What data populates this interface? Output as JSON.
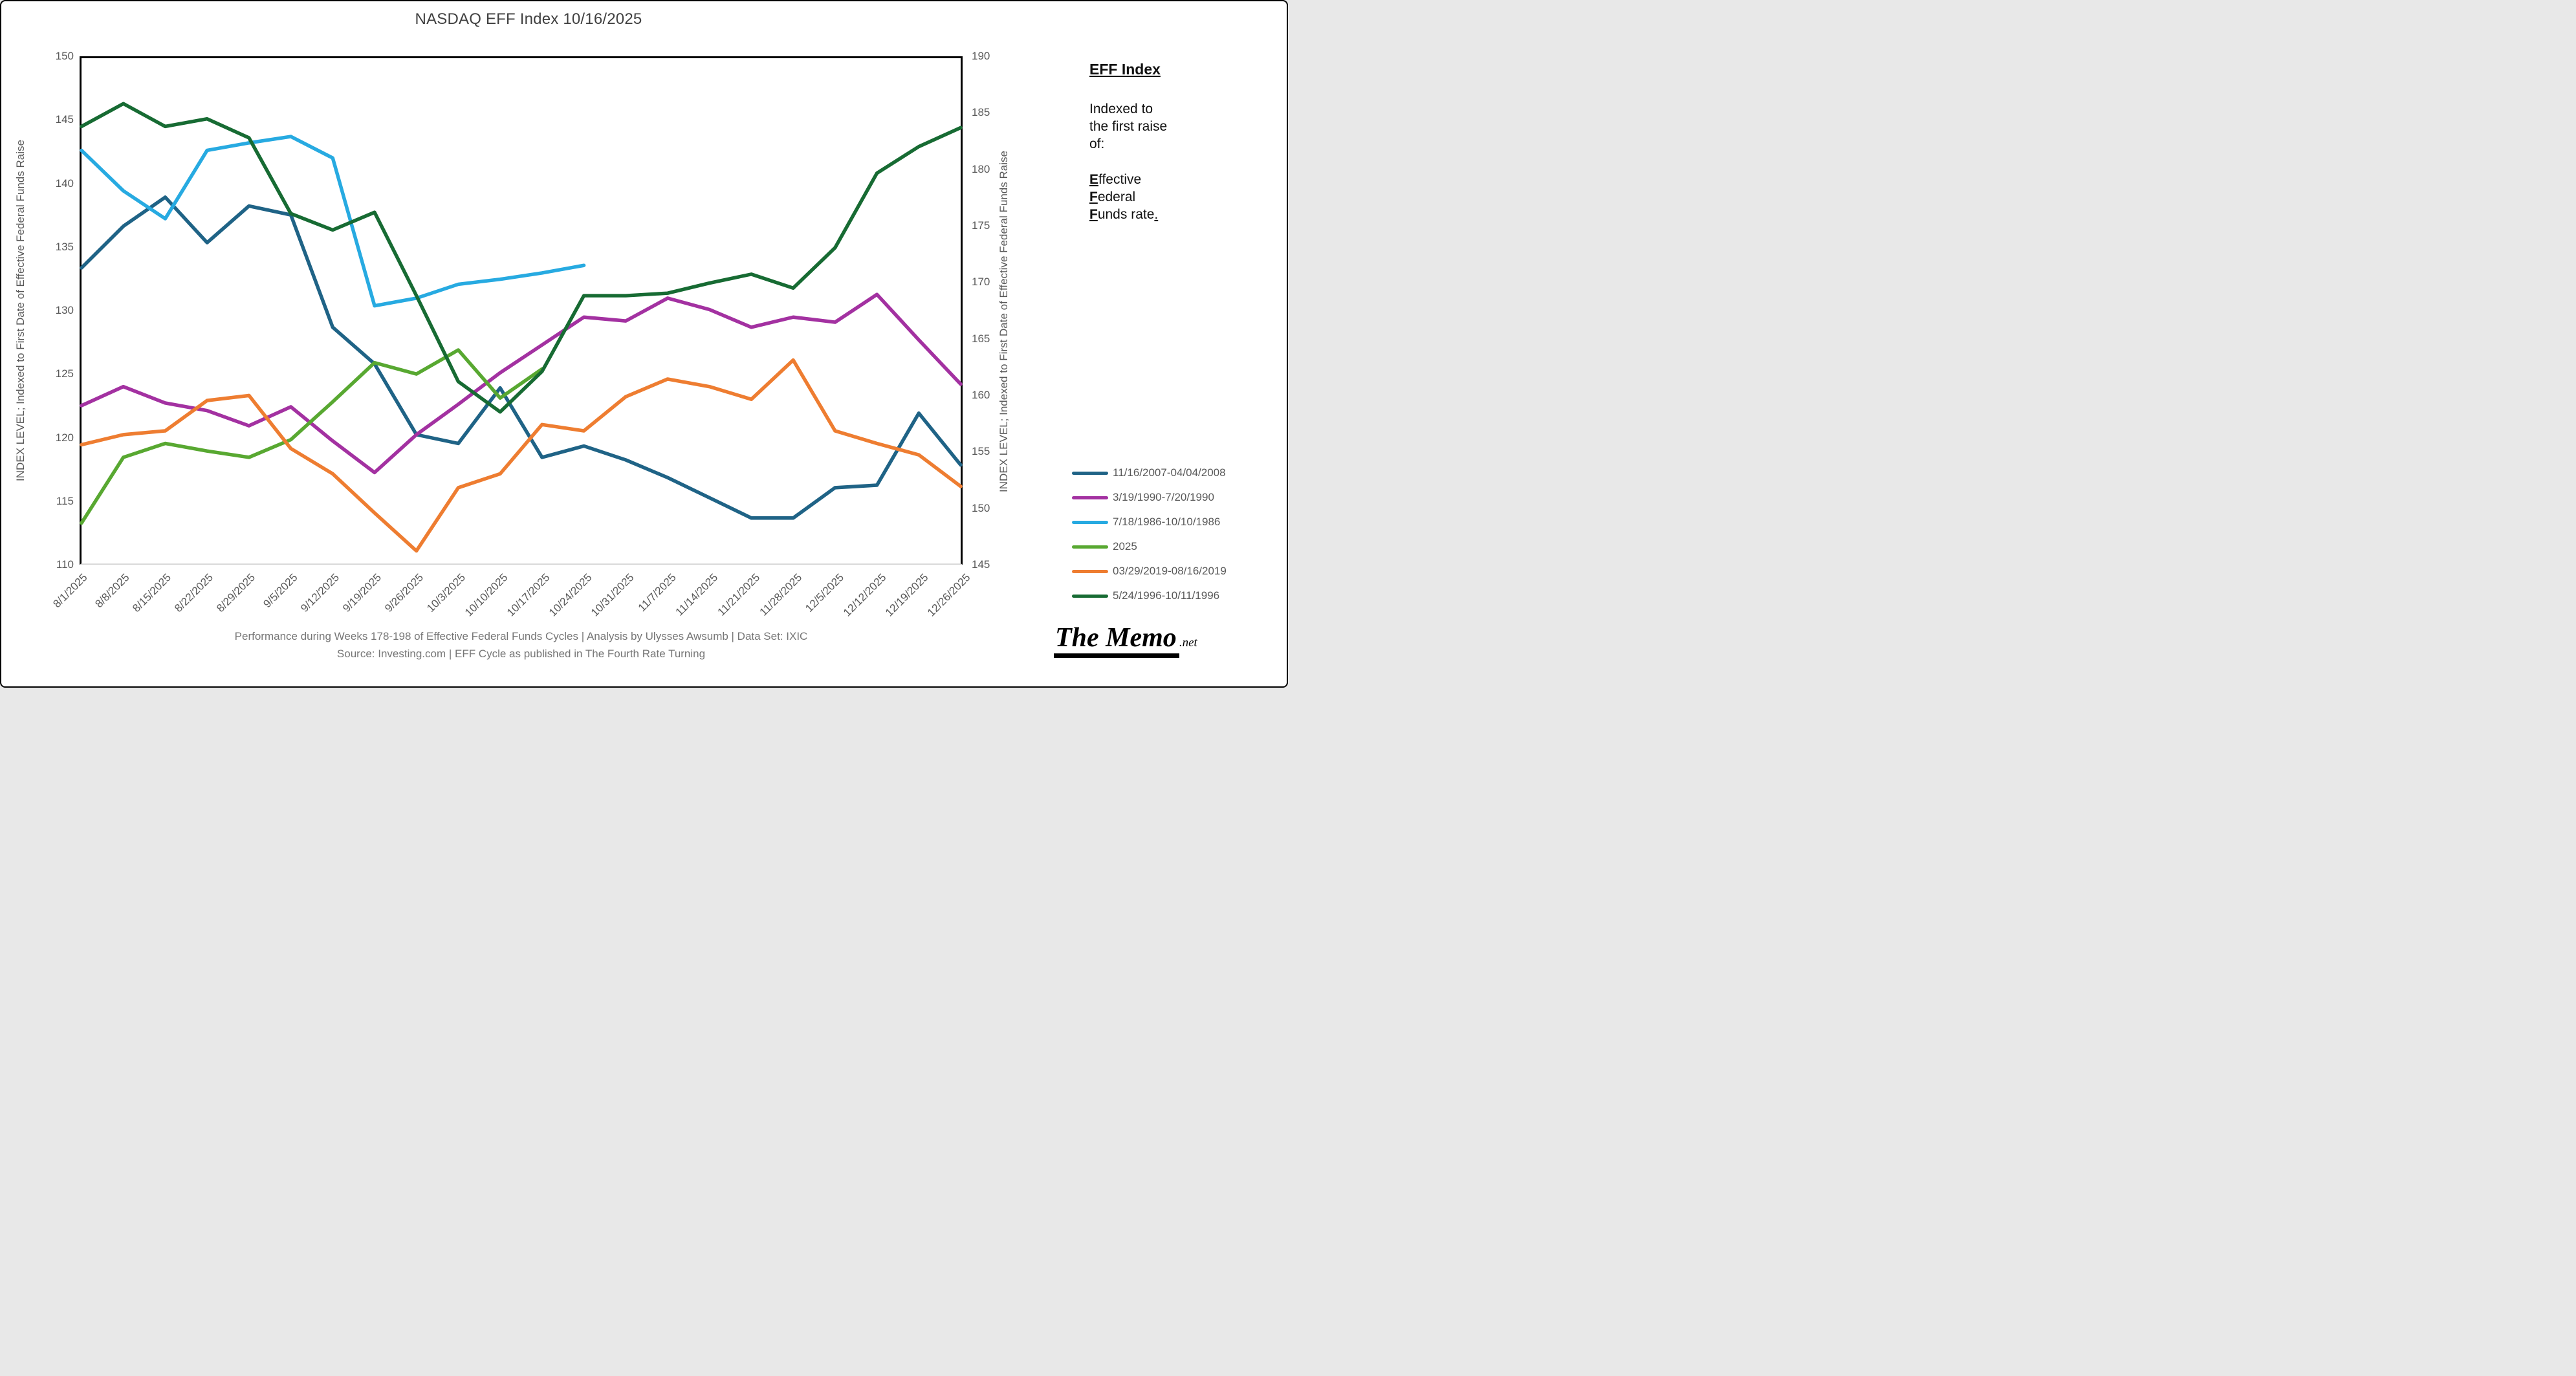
{
  "title": "NASDAQ EFF Index 10/16/2025",
  "caption": {
    "line1": "Performance during Weeks 178-198 of Effective Federal Funds Cycles  |  Analysis  by Ulysses Awsumb  |  Data Set: IXIC",
    "line2": "Source: Investing.com  |  EFF Cycle as published in The Fourth Rate Turning"
  },
  "side_note": {
    "heading": "EFF Index",
    "body": [
      "Indexed to",
      "the first raise",
      "of:"
    ],
    "eff_words": [
      {
        "lead": "E",
        "rest": "ffective",
        "tail": ""
      },
      {
        "lead": "F",
        "rest": "ederal",
        "tail": ""
      },
      {
        "lead": "F",
        "rest": "unds rate",
        "tail": "."
      }
    ]
  },
  "branding": {
    "name": "The Memo",
    "suffix": ".net"
  },
  "chart_data": {
    "type": "line",
    "title": "NASDAQ EFF Index 10/16/2025",
    "grid": false,
    "legend_position": "right",
    "categories": [
      "8/1/2025",
      "8/8/2025",
      "8/15/2025",
      "8/22/2025",
      "8/29/2025",
      "9/5/2025",
      "9/12/2025",
      "9/19/2025",
      "9/26/2025",
      "10/3/2025",
      "10/10/2025",
      "10/17/2025",
      "10/24/2025",
      "10/31/2025",
      "11/7/2025",
      "11/14/2025",
      "11/21/2025",
      "11/28/2025",
      "12/5/2025",
      "12/12/2025",
      "12/19/2025",
      "12/26/2025"
    ],
    "left_axis": {
      "label": "INDEX LEVEL; Indexed to First Date of Effective Federal Funds Raise",
      "min": 110,
      "max": 150,
      "step": 5
    },
    "right_axis": {
      "label": "INDEX LEVEL; Indexed to First Date of Effective Federal Funds Raise",
      "min": 145,
      "max": 190,
      "step": 5
    },
    "series": [
      {
        "name": "11/16/2007-04/04/2008",
        "color": "#1F6386",
        "values": [
          133.4,
          136.7,
          139.0,
          135.4,
          138.3,
          137.6,
          128.7,
          125.8,
          120.2,
          119.5,
          123.9,
          118.4,
          119.3,
          118.2,
          116.8,
          115.2,
          113.6,
          113.6,
          116.0,
          116.2,
          121.9,
          117.8
        ]
      },
      {
        "name": "3/19/1990-7/20/1990",
        "color": "#A331A1",
        "values": [
          122.5,
          124.0,
          122.7,
          122.1,
          120.9,
          122.4,
          119.7,
          117.2,
          120.2,
          122.6,
          125.1,
          127.3,
          129.5,
          129.2,
          131.0,
          130.1,
          128.7,
          129.5,
          129.1,
          131.3,
          127.7,
          124.2
        ]
      },
      {
        "name": "7/18/1986-10/10/1986",
        "color": "#27AAE1",
        "values": [
          142.7,
          139.5,
          137.3,
          142.7,
          143.3,
          143.8,
          142.1,
          130.4,
          131.0,
          132.1,
          132.5,
          133.0,
          133.6
        ]
      },
      {
        "name": "2025",
        "color": "#58A831",
        "values": [
          113.2,
          118.4,
          119.5,
          118.9,
          118.4,
          119.8,
          122.8,
          125.9,
          125.0,
          126.9,
          123.1,
          125.4
        ]
      },
      {
        "name": "03/29/2019-08/16/2019",
        "color": "#EE7D31",
        "values": [
          119.4,
          120.2,
          120.5,
          122.9,
          123.3,
          119.1,
          117.1,
          114.0,
          111.0,
          116.0,
          117.1,
          121.0,
          120.5,
          123.2,
          124.6,
          124.0,
          123.0,
          126.1,
          120.5,
          119.5,
          118.6,
          116.1
        ]
      },
      {
        "name": "5/24/1996-10/11/1996",
        "color": "#176B33",
        "values": [
          144.6,
          146.4,
          144.6,
          145.2,
          143.7,
          137.7,
          136.4,
          137.8,
          131.2,
          124.4,
          122.0,
          125.2,
          131.2,
          131.2,
          131.4,
          132.2,
          132.9,
          131.8,
          135.0,
          140.9,
          143.0,
          144.5
        ]
      }
    ]
  }
}
